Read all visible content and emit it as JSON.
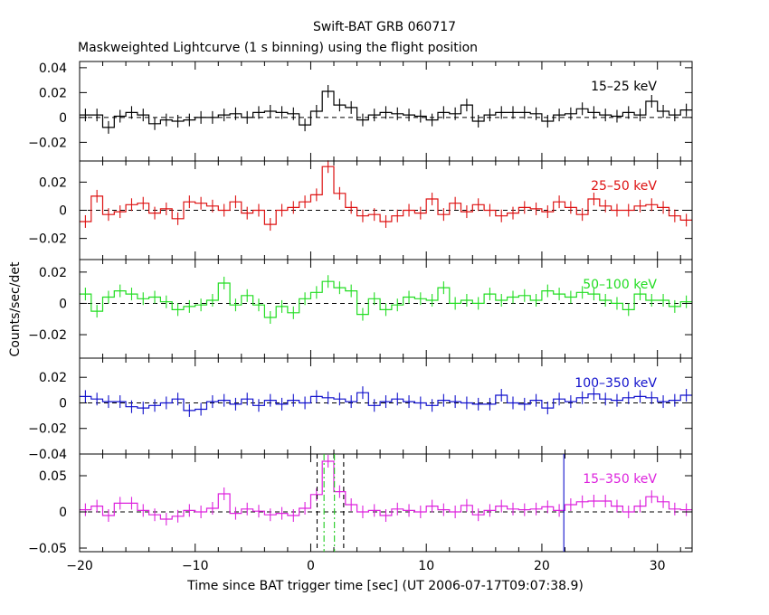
{
  "title": "Swift-BAT GRB 060717",
  "subtitle": "Maskweighted Lightcurve (1 s binning) using the flight position",
  "xlabel": "Time since BAT trigger time [sec] (UT 2006-07-17T09:07:38.9)",
  "ylabel": "Counts/sec/det",
  "chart_data": {
    "type": "line",
    "step": true,
    "x_range": [
      -20,
      33
    ],
    "x_ticks": [
      -20,
      -10,
      0,
      10,
      20,
      30
    ],
    "bin_width_s": 1,
    "bin_starts": [
      -20,
      -19,
      -18,
      -17,
      -16,
      -15,
      -14,
      -13,
      -12,
      -11,
      -10,
      -9,
      -8,
      -7,
      -6,
      -5,
      -4,
      -3,
      -2,
      -1,
      0,
      1,
      2,
      3,
      4,
      5,
      6,
      7,
      8,
      9,
      10,
      11,
      12,
      13,
      14,
      15,
      16,
      17,
      18,
      19,
      20,
      21,
      22,
      23,
      24,
      25,
      26,
      27,
      28,
      29,
      30,
      31,
      32
    ],
    "series": [
      {
        "name": "15–25 keV",
        "color": "#000000",
        "ylim": [
          -0.035,
          0.045
        ],
        "y_ticks": [
          -0.02,
          0,
          0.02,
          0.04
        ],
        "y_tick_labels": [
          "−0.02",
          "0",
          "0.02",
          "0.04"
        ],
        "values": [
          0.002,
          0.002,
          -0.008,
          0.001,
          0.004,
          0.002,
          -0.005,
          -0.002,
          -0.003,
          -0.002,
          0.0,
          0.0,
          0.002,
          0.003,
          0.0,
          0.004,
          0.005,
          0.004,
          0.003,
          -0.006,
          0.005,
          0.021,
          0.01,
          0.008,
          -0.002,
          0.002,
          0.004,
          0.003,
          0.002,
          0.001,
          -0.002,
          0.004,
          0.003,
          0.01,
          -0.003,
          0.002,
          0.004,
          0.004,
          0.004,
          0.003,
          -0.003,
          0.002,
          0.003,
          0.007,
          0.004,
          0.002,
          0.001,
          0.004,
          0.002,
          0.013,
          0.005,
          0.002,
          0.006
        ]
      },
      {
        "name": "25–50 keV",
        "color": "#dd1111",
        "ylim": [
          -0.035,
          0.035
        ],
        "y_ticks": [
          -0.02,
          0,
          0.02
        ],
        "y_tick_labels": [
          "−0.02",
          "0",
          "0.02"
        ],
        "values": [
          -0.008,
          0.01,
          -0.003,
          -0.001,
          0.004,
          0.005,
          -0.002,
          0.001,
          -0.006,
          0.006,
          0.005,
          0.003,
          0.0,
          0.006,
          -0.002,
          0.0,
          -0.01,
          0.0,
          0.002,
          0.006,
          0.011,
          0.031,
          0.012,
          0.002,
          -0.004,
          -0.003,
          -0.008,
          -0.004,
          0.0,
          -0.002,
          0.008,
          -0.003,
          0.005,
          -0.001,
          0.004,
          0.0,
          -0.004,
          -0.002,
          0.002,
          0.001,
          -0.001,
          0.006,
          0.002,
          -0.003,
          0.008,
          0.003,
          0.0,
          0.0,
          0.003,
          0.004,
          0.002,
          -0.004,
          -0.007
        ]
      },
      {
        "name": "50–100 keV",
        "color": "#22dd22",
        "ylim": [
          -0.035,
          0.028
        ],
        "y_ticks": [
          -0.02,
          0,
          0.02
        ],
        "y_tick_labels": [
          "−0.02",
          "0",
          "0.02"
        ],
        "values": [
          0.006,
          -0.005,
          0.004,
          0.008,
          0.006,
          0.003,
          0.004,
          0.001,
          -0.004,
          -0.002,
          -0.001,
          0.002,
          0.013,
          -0.001,
          0.005,
          -0.001,
          -0.009,
          -0.002,
          -0.006,
          0.003,
          0.007,
          0.014,
          0.01,
          0.008,
          -0.007,
          0.003,
          -0.004,
          -0.001,
          0.004,
          0.003,
          0.002,
          0.01,
          0.0,
          0.002,
          0.0,
          0.006,
          0.002,
          0.004,
          0.005,
          0.002,
          0.008,
          0.006,
          0.004,
          0.007,
          0.006,
          0.002,
          0.0,
          -0.004,
          0.006,
          0.002,
          0.002,
          -0.002,
          0.001
        ]
      },
      {
        "name": "100–350 keV",
        "color": "#1111cc",
        "ylim": [
          -0.04,
          0.035
        ],
        "y_ticks": [
          -0.04,
          -0.02,
          0,
          0.02
        ],
        "y_tick_labels": [
          "−0.04",
          "−0.02",
          "0",
          "0.02"
        ],
        "values": [
          0.005,
          0.003,
          0.001,
          0.001,
          -0.003,
          -0.004,
          -0.002,
          0.0,
          0.003,
          -0.006,
          -0.005,
          0.001,
          0.002,
          -0.001,
          0.003,
          -0.002,
          0.002,
          -0.001,
          0.002,
          0.0,
          0.005,
          0.004,
          0.003,
          0.001,
          0.008,
          -0.002,
          0.001,
          0.003,
          0.001,
          0.0,
          -0.002,
          0.002,
          0.001,
          0.0,
          -0.001,
          -0.001,
          0.006,
          0.0,
          -0.001,
          0.002,
          -0.004,
          0.003,
          0.001,
          0.004,
          0.007,
          0.003,
          0.002,
          0.004,
          0.005,
          0.004,
          0.001,
          0.002,
          0.006
        ]
      },
      {
        "name": "15–350 keV",
        "color": "#dd22dd",
        "ylim": [
          -0.055,
          0.08
        ],
        "y_ticks": [
          -0.05,
          0,
          0.05
        ],
        "y_tick_labels": [
          "−0.05",
          "0",
          "0.05"
        ],
        "values": [
          0.003,
          0.008,
          -0.005,
          0.012,
          0.012,
          0.002,
          -0.004,
          -0.01,
          -0.006,
          0.002,
          0.0,
          0.005,
          0.025,
          -0.002,
          0.004,
          0.001,
          -0.004,
          -0.002,
          -0.005,
          0.005,
          0.024,
          0.07,
          0.028,
          0.01,
          0.0,
          0.002,
          -0.005,
          0.004,
          0.002,
          0.0,
          0.008,
          0.003,
          0.0,
          0.009,
          -0.004,
          0.002,
          0.008,
          0.004,
          0.003,
          0.004,
          0.007,
          0.002,
          0.01,
          0.014,
          0.015,
          0.015,
          0.008,
          0.0,
          0.008,
          0.021,
          0.014,
          0.004,
          0.003
        ]
      }
    ],
    "markers": [
      {
        "x": 0.55,
        "color": "#000000",
        "style": "dashed"
      },
      {
        "x": 2.85,
        "color": "#000000",
        "style": "dashed"
      },
      {
        "x": 1.15,
        "color": "#22cc22",
        "style": "dashdot"
      },
      {
        "x": 2.05,
        "color": "#22cc22",
        "style": "dashdot"
      },
      {
        "x": 21.9,
        "color": "#1111cc",
        "style": "solid"
      }
    ]
  }
}
